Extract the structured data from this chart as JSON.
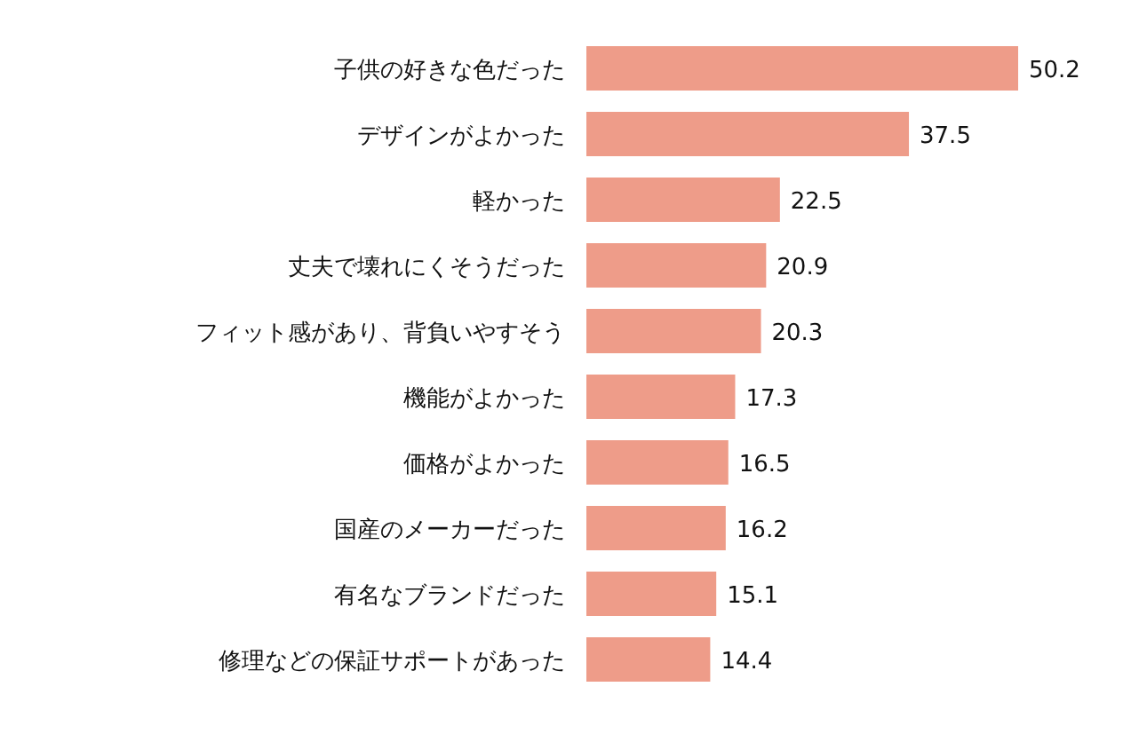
{
  "chart_data": {
    "type": "bar",
    "orientation": "horizontal",
    "data_labels": true,
    "color": "#ee9c89",
    "categories": [
      "子供の好きな色だった",
      "デザインがよかった",
      "軽かった",
      "丈夫で壊れにくそうだった",
      "フィット感があり、背負いやすそう",
      "機能がよかった",
      "価格がよかった",
      "国産のメーカーだった",
      "有名なブランドだった",
      "修理などの保証サポートがあった"
    ],
    "values": [
      50.2,
      37.5,
      22.5,
      20.9,
      20.3,
      17.3,
      16.5,
      16.2,
      15.1,
      14.4
    ]
  }
}
